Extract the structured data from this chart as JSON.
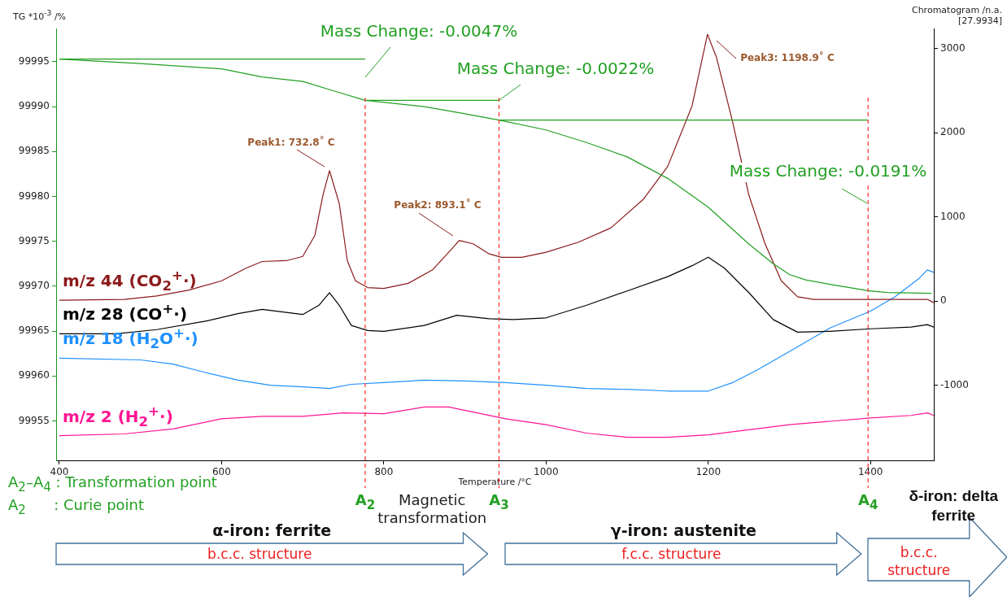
{
  "chart_data": {
    "type": "line",
    "xlabel": "Temperature /°C",
    "ylabel": "TG *10$^{-3}$ /%",
    "y2label": "Chromatogram /n.a. [27.9934]",
    "xlim": [
      396,
      1478
    ],
    "xticks": [
      400,
      600,
      800,
      1000,
      1200,
      1400
    ],
    "ylim": [
      99950.6,
      99998.7
    ],
    "yticks": [
      99955,
      99960,
      99965,
      99970,
      99975,
      99980,
      99985,
      99990,
      99995
    ],
    "y2lim": [
      -1894,
      3240
    ],
    "y2ticks": [
      -1000,
      0,
      1000,
      2000,
      3000
    ],
    "grid": false,
    "legend": false,
    "marker": "none",
    "series": [
      {
        "name": null,
        "color": "#22a022",
        "axis": "y",
        "x": [
          400,
          500,
          600,
          650,
          700,
          740,
          777,
          850,
          900,
          942,
          1000,
          1050,
          1100,
          1150,
          1200,
          1250,
          1280,
          1300,
          1320,
          1350,
          1397,
          1420,
          1475
        ],
        "values": [
          99995.3,
          99994.8,
          99994.2,
          99993.3,
          99992.8,
          99991.7,
          99990.7,
          99990.0,
          99989.2,
          99988.5,
          99987.4,
          99986.0,
          99984.4,
          99982.0,
          99978.8,
          99974.7,
          99972.5,
          99971.3,
          99970.7,
          99970.2,
          99969.5,
          99969.3,
          99969.2
        ]
      },
      {
        "name": null,
        "color": "#22a022",
        "axis": "y",
        "x": [
          400,
          777
        ],
        "values": [
          99995.3,
          99995.3
        ]
      },
      {
        "name": null,
        "color": "#22a022",
        "axis": "y",
        "x": [
          777,
          942
        ],
        "values": [
          99990.7,
          99990.7
        ]
      },
      {
        "name": null,
        "color": "#22a022",
        "axis": "y",
        "x": [
          942,
          1397
        ],
        "values": [
          99988.5,
          99988.5
        ]
      },
      {
        "name": "m/z 44 (CO$_{2}$$^{+}$·)",
        "color": "#8b1a1a",
        "axis": "y2",
        "x": [
          400,
          480,
          520,
          560,
          600,
          630,
          650,
          680,
          700,
          715,
          725,
          733,
          745,
          755,
          765,
          780,
          800,
          830,
          860,
          880,
          893,
          910,
          930,
          945,
          970,
          1000,
          1040,
          1080,
          1120,
          1150,
          1180,
          1199,
          1210,
          1230,
          1250,
          1270,
          1290,
          1310,
          1330,
          1400,
          1470,
          1478
        ],
        "values": [
          10,
          20,
          60,
          130,
          240,
          390,
          470,
          480,
          530,
          780,
          1260,
          1550,
          1160,
          480,
          240,
          160,
          150,
          210,
          370,
          580,
          720,
          680,
          560,
          520,
          520,
          580,
          700,
          870,
          1210,
          1600,
          2320,
          3170,
          2900,
          2130,
          1260,
          680,
          240,
          50,
          20,
          20,
          20,
          -20
        ]
      },
      {
        "name": "m/z 28 (CO$^{+}$·)",
        "color": "#000000",
        "axis": "y2",
        "x": [
          400,
          470,
          520,
          580,
          620,
          650,
          700,
          720,
          733,
          745,
          760,
          780,
          800,
          850,
          890,
          930,
          960,
          1000,
          1050,
          1100,
          1150,
          1180,
          1200,
          1220,
          1250,
          1280,
          1310,
          1350,
          1400,
          1450,
          1470,
          1478
        ],
        "values": [
          -390,
          -390,
          -340,
          -240,
          -150,
          -100,
          -160,
          -50,
          100,
          -50,
          -290,
          -350,
          -360,
          -290,
          -170,
          -210,
          -220,
          -200,
          -50,
          120,
          290,
          420,
          520,
          390,
          100,
          -220,
          -370,
          -360,
          -330,
          -310,
          -280,
          -310
        ]
      },
      {
        "name": "m/z 18 (H$_{2}$O$^{+}$·)",
        "color": "#1e90ff",
        "axis": "y2",
        "x": [
          400,
          500,
          540,
          580,
          620,
          660,
          700,
          733,
          760,
          800,
          850,
          900,
          950,
          1000,
          1050,
          1100,
          1150,
          1200,
          1230,
          1260,
          1300,
          1350,
          1400,
          1430,
          1460,
          1470,
          1478
        ],
        "values": [
          -680,
          -700,
          -750,
          -850,
          -940,
          -1000,
          -1020,
          -1040,
          -990,
          -970,
          -940,
          -950,
          -970,
          -1000,
          -1040,
          -1050,
          -1070,
          -1070,
          -970,
          -820,
          -600,
          -320,
          -120,
          50,
          270,
          370,
          340
        ]
      },
      {
        "name": "m/z 2 (H$_{2}$$^{+}$·)",
        "color": "#ff1493",
        "axis": "y2",
        "x": [
          400,
          480,
          540,
          600,
          650,
          700,
          750,
          800,
          850,
          880,
          920,
          950,
          1000,
          1050,
          1100,
          1150,
          1200,
          1250,
          1300,
          1350,
          1400,
          1450,
          1470,
          1478
        ],
        "values": [
          -1600,
          -1580,
          -1520,
          -1400,
          -1370,
          -1370,
          -1330,
          -1340,
          -1260,
          -1260,
          -1340,
          -1400,
          -1470,
          -1570,
          -1620,
          -1620,
          -1590,
          -1530,
          -1470,
          -1430,
          -1390,
          -1360,
          -1330,
          -1360
        ]
      }
    ],
    "ref_lines": [
      {
        "axis": "x",
        "value": 777,
        "label": "A$_{2}$",
        "color": "#ff2a2a",
        "line_style": "dashed"
      },
      {
        "axis": "x",
        "value": 942,
        "label": "A$_{3}$",
        "color": "#ff2a2a",
        "line_style": "dashed"
      },
      {
        "axis": "x",
        "value": 1397,
        "label": "A$_{4}$",
        "color": "#ff2a2a",
        "line_style": "dashed"
      }
    ],
    "annotations": [
      "Peak1: 732.8˚ C",
      "Peak2: 893.1˚ C",
      "Peak3: 1198.9˚ C",
      "Mass Change: -0.0047%",
      {
        "text": "Mass Change: -0.0022%",
        "x": 942,
        "y": 99990.7
      },
      "Mass Change: -0.0191%",
      "A$_{2}$–A$_{4}$ : Transformation point",
      "A$_{2}$      : Curie point",
      "Magnetic transformation",
      "α-iron: ferrite",
      "b.c.c. structure",
      "γ-iron: austenite",
      "f.c.c. structure",
      "δ-iron: delta ferrite",
      "b.c.c. structure"
    ]
  }
}
